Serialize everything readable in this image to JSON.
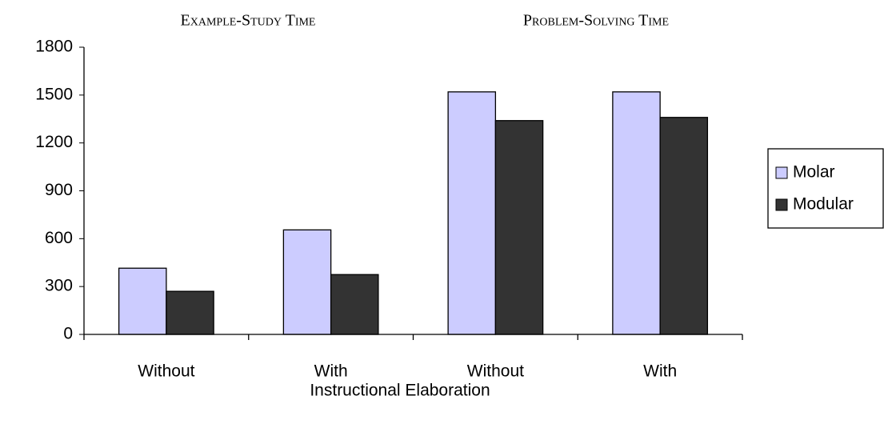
{
  "chart_data": {
    "type": "bar",
    "annotations": [
      "Example-Study Time",
      "Problem-Solving Time"
    ],
    "xlabel": "Instructional Elaboration",
    "categories": [
      "Without",
      "With",
      "Without",
      "With"
    ],
    "series": [
      {
        "name": "Molar",
        "color": "#ccccff",
        "values": [
          415,
          655,
          1520,
          1520
        ]
      },
      {
        "name": "Modular",
        "color": "#333333",
        "values": [
          270,
          375,
          1340,
          1360
        ]
      }
    ],
    "ylim": [
      0,
      1800
    ],
    "yticks": [
      0,
      300,
      600,
      900,
      1200,
      1500,
      1800
    ],
    "grid": false,
    "legend": "right"
  }
}
